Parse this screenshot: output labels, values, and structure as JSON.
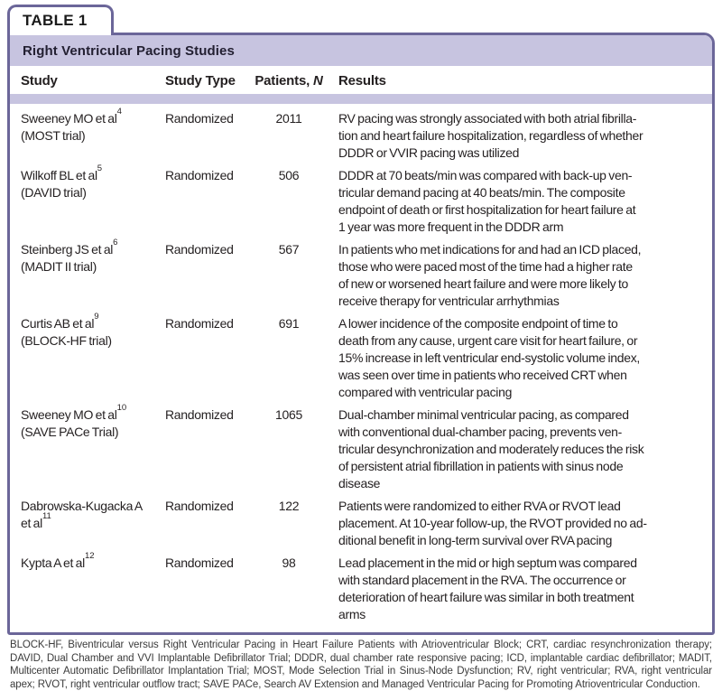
{
  "tab": {
    "label": "TABLE 1"
  },
  "title": "Right Ventricular Pacing Studies",
  "columns": {
    "study": "Study",
    "study_type": "Study Type",
    "patients_prefix": "Patients, ",
    "patients_n": "N",
    "results": "Results"
  },
  "colors": {
    "border_purple": "#6b6699",
    "lavender": "#c7c4e0",
    "text_black": "#231f20",
    "footnote_gray": "#3b3b3b"
  },
  "rows": [
    {
      "study_lines": [
        {
          "text": "Sweeney MO et al",
          "sup": "4"
        },
        {
          "text": "(MOST trial)"
        }
      ],
      "study_type": "Randomized",
      "patients": "2011",
      "results": "RV pacing was strongly associated with both atrial fibrilla-\ntion and heart failure hospitalization, regardless of whether\nDDDR or VVIR pacing was utilized"
    },
    {
      "study_lines": [
        {
          "text": "Wilkoff BL et al",
          "sup": "5"
        },
        {
          "text": "(DAVID trial)"
        }
      ],
      "study_type": "Randomized",
      "patients": "506",
      "results": "DDDR at 70 beats/min was compared with back-up ven-\ntricular demand pacing at 40 beats/min. The composite\nendpoint of death or first hospitalization for heart failure at\n1 year was more frequent in the DDDR arm"
    },
    {
      "study_lines": [
        {
          "text": "Steinberg JS et al",
          "sup": "6"
        },
        {
          "text": "(MADIT II trial)"
        }
      ],
      "study_type": "Randomized",
      "patients": "567",
      "results": "In patients who met indications for and had an ICD placed,\nthose who were paced most of the time had a higher rate\nof new or worsened heart failure and were more likely to\nreceive therapy for ventricular arrhythmias"
    },
    {
      "study_lines": [
        {
          "text": "Curtis AB et al",
          "sup": "9"
        },
        {
          "text": "(BLOCK-HF trial)"
        }
      ],
      "study_type": "Randomized",
      "patients": "691",
      "results": "A lower incidence of the composite endpoint of time to\ndeath from any cause, urgent care visit for heart failure, or\n15% increase in left ventricular end-systolic volume index,\nwas seen over time in patients who received CRT when\ncompared with ventricular pacing"
    },
    {
      "study_lines": [
        {
          "text": "Sweeney MO et al",
          "sup": "10"
        },
        {
          "text": "(SAVE PACe Trial)"
        }
      ],
      "study_type": "Randomized",
      "patients": "1065",
      "results": "Dual-chamber minimal ventricular pacing, as compared\nwith conventional dual-chamber pacing, prevents ven-\ntricular desynchronization and moderately reduces the risk\nof persistent atrial fibrillation in patients with sinus node\ndisease"
    },
    {
      "study_lines": [
        {
          "text": "Dabrowska-Kugacka A"
        },
        {
          "text": "et al",
          "sup": "11"
        }
      ],
      "study_type": "Randomized",
      "patients": "122",
      "results": "Patients were randomized to either RVA or RVOT lead\nplacement. At 10-year follow-up, the RVOT provided no ad-\nditional benefit in long-term survival over RVA pacing"
    },
    {
      "study_lines": [
        {
          "text": "Kypta A et al",
          "sup": "12"
        }
      ],
      "study_type": "Randomized",
      "patients": "98",
      "results": "Lead placement in the mid or high septum was compared\nwith standard placement in the RVA. The occurrence or\ndeterioration of heart failure was similar in both treatment\narms"
    }
  ],
  "footnote": "BLOCK-HF, Biventricular versus Right Ventricular Pacing in Heart Failure Patients with Atrioventricular Block; CRT, cardiac resynchronization therapy; DAVID, Dual Chamber and VVI Implantable Defibrillator Trial; DDDR, dual chamber rate responsive pacing; ICD, implantable cardiac defibrillator; MADIT, Multicenter Automatic Defibrillator Implantation Trial; MOST, Mode Selection Trial in Sinus-Node Dysfunction; RV, right ventricular; RVA, right ventricular apex; RVOT, right ventricular outflow tract; SAVE PACe, Search AV Extension and Managed Ventricular Pacing for Promoting Atrioventricular Conduction."
}
